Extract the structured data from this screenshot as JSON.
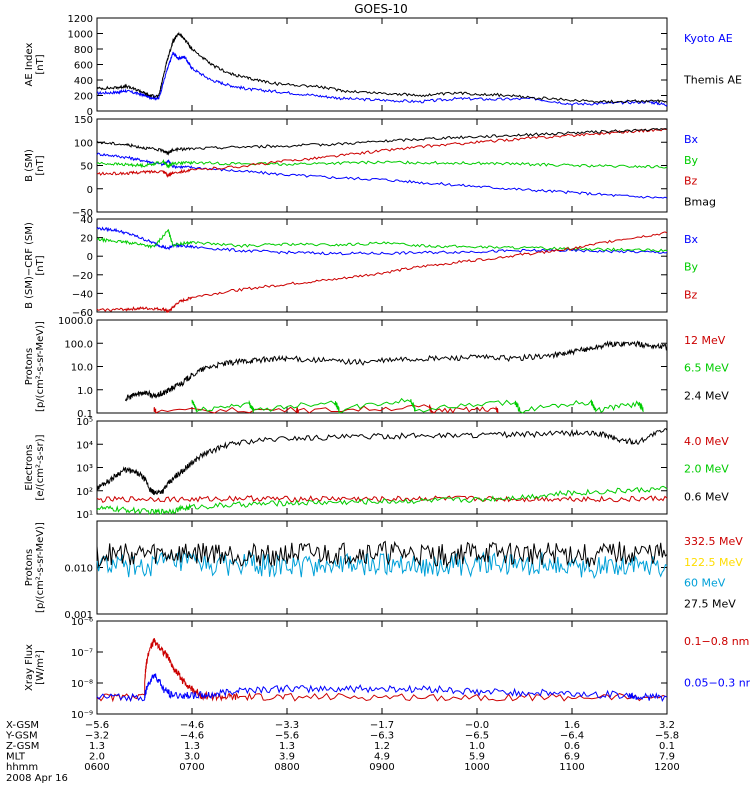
{
  "title": "GOES-10",
  "chart_data": [
    {
      "id": "ae",
      "type": "line",
      "ylabel": [
        "AE Index",
        "[nT]"
      ],
      "ylim": [
        0,
        1200
      ],
      "scale": "linear",
      "ticks": [
        {
          "v": 0,
          "label": "0"
        },
        {
          "v": 200,
          "label": "200"
        },
        {
          "v": 400,
          "label": "400"
        },
        {
          "v": 600,
          "label": "600"
        },
        {
          "v": 800,
          "label": "800"
        },
        {
          "v": 1000,
          "label": "1000"
        },
        {
          "v": 1200,
          "label": "1200"
        }
      ],
      "series": [
        {
          "name": "Kyoto AE",
          "color": "#0000ff",
          "x": [
            0,
            0.2,
            0.3,
            0.45,
            0.55,
            0.65,
            0.73,
            0.8,
            0.85,
            0.92,
            1.0,
            1.2,
            1.4,
            1.6,
            1.9,
            2.3,
            2.6,
            3.0,
            3.4,
            3.8,
            4.2,
            4.6,
            5.0,
            5.4,
            5.8,
            6.0
          ],
          "y": [
            230,
            240,
            260,
            220,
            180,
            160,
            500,
            750,
            680,
            700,
            550,
            400,
            330,
            280,
            250,
            200,
            160,
            140,
            120,
            160,
            150,
            160,
            90,
            100,
            120,
            80
          ]
        },
        {
          "name": "Themis AE",
          "color": "#000000",
          "x": [
            0,
            0.2,
            0.3,
            0.45,
            0.55,
            0.65,
            0.73,
            0.8,
            0.86,
            0.92,
            1.0,
            1.2,
            1.4,
            1.6,
            1.9,
            2.3,
            2.6,
            3.0,
            3.4,
            3.8,
            4.2,
            4.6,
            5.0,
            5.4,
            5.8,
            6.0
          ],
          "y": [
            290,
            300,
            320,
            260,
            200,
            190,
            620,
            900,
            1000,
            930,
            800,
            600,
            480,
            420,
            350,
            320,
            260,
            230,
            200,
            230,
            210,
            170,
            140,
            120,
            130,
            120
          ]
        }
      ],
      "legend_below": [
        "Themis AE"
      ]
    },
    {
      "id": "b_sm",
      "type": "line",
      "ylabel": [
        "B (SM)",
        "[nT]"
      ],
      "ylim": [
        -50,
        150
      ],
      "scale": "linear",
      "ticks": [
        {
          "v": -50,
          "label": "−50"
        },
        {
          "v": 0,
          "label": "0"
        },
        {
          "v": 50,
          "label": "50"
        },
        {
          "v": 100,
          "label": "100"
        },
        {
          "v": 150,
          "label": "150"
        }
      ],
      "series": [
        {
          "name": "Bx",
          "color": "#0000ff",
          "x": [
            0,
            0.3,
            0.5,
            0.7,
            0.75,
            0.8,
            1.0,
            1.5,
            2.0,
            2.5,
            3.0,
            3.5,
            4.0,
            4.5,
            5.0,
            5.5,
            6.0
          ],
          "y": [
            75,
            68,
            60,
            52,
            60,
            48,
            46,
            38,
            30,
            24,
            20,
            12,
            5,
            -2,
            -8,
            -15,
            -20
          ]
        },
        {
          "name": "By",
          "color": "#00cc00",
          "x": [
            0,
            0.3,
            0.5,
            0.7,
            0.75,
            0.8,
            1.0,
            1.5,
            2.0,
            2.5,
            3.0,
            3.5,
            4.0,
            4.5,
            5.0,
            5.5,
            6.0
          ],
          "y": [
            55,
            52,
            50,
            58,
            48,
            55,
            56,
            54,
            53,
            55,
            57,
            56,
            55,
            53,
            50,
            48,
            47
          ]
        },
        {
          "name": "Bz",
          "color": "#cc0000",
          "x": [
            0,
            0.3,
            0.5,
            0.7,
            0.75,
            0.8,
            1.0,
            1.5,
            2.0,
            2.5,
            3.0,
            3.5,
            4.0,
            4.5,
            5.0,
            5.5,
            6.0
          ],
          "y": [
            32,
            33,
            36,
            38,
            28,
            35,
            40,
            48,
            60,
            70,
            82,
            92,
            100,
            108,
            115,
            122,
            128
          ]
        },
        {
          "name": "Bmag",
          "color": "#000000",
          "x": [
            0,
            0.3,
            0.5,
            0.7,
            0.75,
            0.8,
            1.0,
            1.5,
            2.0,
            2.5,
            3.0,
            3.5,
            4.0,
            4.5,
            5.0,
            5.5,
            6.0
          ],
          "y": [
            100,
            95,
            88,
            82,
            76,
            84,
            86,
            90,
            92,
            96,
            102,
            108,
            112,
            116,
            120,
            124,
            128
          ]
        }
      ]
    },
    {
      "id": "b_minus_crf",
      "type": "line",
      "ylabel": [
        "B (SM)−CRF (SM)",
        "[nT]"
      ],
      "ylim": [
        -60,
        40
      ],
      "scale": "linear",
      "ticks": [
        {
          "v": -60,
          "label": "−60"
        },
        {
          "v": -40,
          "label": "−40"
        },
        {
          "v": -20,
          "label": "−20"
        },
        {
          "v": 0,
          "label": "0"
        },
        {
          "v": 20,
          "label": "20"
        },
        {
          "v": 40,
          "label": "40"
        }
      ],
      "series": [
        {
          "name": "Bx",
          "color": "#0000ff",
          "x": [
            0,
            0.2,
            0.4,
            0.6,
            0.75,
            0.8,
            1.0,
            1.5,
            2.0,
            2.5,
            3.0,
            3.5,
            4.0,
            4.5,
            5.0,
            5.5,
            6.0
          ],
          "y": [
            30,
            28,
            22,
            14,
            8,
            12,
            10,
            6,
            4,
            3,
            3,
            4,
            5,
            6,
            6,
            5,
            4
          ]
        },
        {
          "name": "By",
          "color": "#00cc00",
          "x": [
            0,
            0.2,
            0.4,
            0.6,
            0.75,
            0.8,
            1.0,
            1.5,
            2.0,
            2.5,
            3.0,
            3.5,
            4.0,
            4.5,
            5.0,
            5.5,
            6.0
          ],
          "y": [
            18,
            16,
            14,
            10,
            28,
            12,
            15,
            11,
            13,
            12,
            14,
            11,
            10,
            9,
            8,
            7,
            6
          ]
        },
        {
          "name": "Bz",
          "color": "#cc0000",
          "x": [
            0,
            0.3,
            0.5,
            0.7,
            0.75,
            0.85,
            1.0,
            1.5,
            2.0,
            2.5,
            3.0,
            3.5,
            4.0,
            4.5,
            5.0,
            5.5,
            6.0
          ],
          "y": [
            -58,
            -57,
            -56,
            -57,
            -60,
            -50,
            -44,
            -36,
            -30,
            -25,
            -18,
            -10,
            -4,
            2,
            8,
            18,
            25
          ]
        }
      ]
    },
    {
      "id": "protons_low",
      "type": "line",
      "ylabel": [
        "Protons",
        "[p/(cm²-s-sr-MeV)]"
      ],
      "ylim": [
        0.1,
        1000
      ],
      "scale": "log",
      "ticks": [
        {
          "v": 0.1,
          "label": "0.1"
        },
        {
          "v": 1,
          "label": "1.0"
        },
        {
          "v": 10,
          "label": "10.0"
        },
        {
          "v": 100,
          "label": "100.0"
        },
        {
          "v": 1000,
          "label": "1000.0"
        }
      ],
      "series": [
        {
          "name": "12 MeV",
          "color": "#cc0000",
          "x": [
            0.6,
            0.62,
            2.1,
            2.12,
            3.5,
            3.52,
            4.2,
            4.22
          ],
          "y": [
            0.15,
            0.12,
            0.14,
            0.12,
            0.18,
            0.12,
            0.15,
            0.12
          ]
        },
        {
          "name": "6.5 MeV",
          "color": "#00cc00",
          "x": [
            1.0,
            1.05,
            1.6,
            1.65,
            2.5,
            2.55,
            3.3,
            3.35,
            4.4,
            4.45,
            5.2,
            5.25,
            5.7,
            5.75
          ],
          "y": [
            0.3,
            0.12,
            0.25,
            0.12,
            0.3,
            0.12,
            0.35,
            0.12,
            0.28,
            0.12,
            0.3,
            0.12,
            0.25,
            0.12
          ]
        },
        {
          "name": "2.4 MeV",
          "color": "#000000",
          "x": [
            0.3,
            0.4,
            0.5,
            0.6,
            0.7,
            0.8,
            0.9,
            1.0,
            1.2,
            1.4,
            1.6,
            1.8,
            2.0,
            2.4,
            2.8,
            3.2,
            3.6,
            4.0,
            4.4,
            4.8,
            5.0,
            5.2,
            5.4,
            5.6,
            5.8,
            6.0
          ],
          "y": [
            0.4,
            0.6,
            0.8,
            0.5,
            0.7,
            1.2,
            2,
            4,
            10,
            14,
            18,
            20,
            22,
            18,
            15,
            20,
            22,
            25,
            22,
            30,
            40,
            60,
            90,
            100,
            80,
            70
          ]
        }
      ]
    },
    {
      "id": "electrons",
      "type": "line",
      "ylabel": [
        "Electrons",
        "[e/(cm²-s-sr)]"
      ],
      "ylim": [
        10,
        100000
      ],
      "scale": "log",
      "ticks": [
        {
          "v": 10,
          "label": "10¹"
        },
        {
          "v": 100,
          "label": "10²"
        },
        {
          "v": 1000,
          "label": "10³"
        },
        {
          "v": 10000,
          "label": "10⁴"
        },
        {
          "v": 100000,
          "label": "10⁵"
        }
      ],
      "series": [
        {
          "name": "4.0 MeV",
          "color": "#cc0000",
          "x": [
            0,
            0.5,
            1.0,
            1.5,
            2.0,
            2.5,
            3.0,
            3.5,
            4.0,
            4.5,
            5.0,
            5.5,
            6.0
          ],
          "y": [
            40,
            45,
            42,
            48,
            44,
            46,
            43,
            47,
            45,
            44,
            46,
            42,
            48
          ]
        },
        {
          "name": "2.0 MeV",
          "color": "#00cc00",
          "x": [
            0,
            0.3,
            0.6,
            0.8,
            1.0,
            1.5,
            2.0,
            2.5,
            3.0,
            3.5,
            4.0,
            4.5,
            5.0,
            5.5,
            6.0
          ],
          "y": [
            18,
            15,
            12,
            14,
            20,
            25,
            30,
            32,
            35,
            38,
            42,
            55,
            80,
            100,
            120
          ]
        },
        {
          "name": "0.6 MeV",
          "color": "#000000",
          "x": [
            0,
            0.15,
            0.3,
            0.45,
            0.55,
            0.6,
            0.7,
            0.8,
            0.9,
            1.0,
            1.2,
            1.5,
            2.0,
            2.5,
            3.0,
            3.5,
            4.0,
            4.5,
            5.0,
            5.3,
            5.5,
            5.7,
            6.0
          ],
          "y": [
            120,
            300,
            800,
            500,
            120,
            80,
            100,
            300,
            700,
            1500,
            5000,
            12000,
            18000,
            20000,
            22000,
            24000,
            25000,
            26000,
            30000,
            28000,
            15000,
            12000,
            40000
          ]
        }
      ]
    },
    {
      "id": "protons_high",
      "type": "line",
      "ylabel": [
        "Protons",
        "[p/(cm²-s-sr-MeV)]"
      ],
      "ylim": [
        0.001,
        0.1
      ],
      "scale": "log",
      "ticks": [
        {
          "v": 0.001,
          "label": "0.001"
        },
        {
          "v": 0.01,
          "label": "0.010"
        },
        {
          "v": 0.1,
          "label": ""
        }
      ],
      "series": [
        {
          "name": "332.5 MeV",
          "color": "#cc0000",
          "x": [],
          "y": []
        },
        {
          "name": "122.5 MeV",
          "color": "#ffdd00",
          "x": [],
          "y": []
        },
        {
          "name": "60 MeV",
          "color": "#00a0d8",
          "x": [
            0,
            0.4,
            0.8,
            1.2,
            1.6,
            2.0,
            2.4,
            2.8,
            3.2,
            3.6,
            4.0,
            4.4,
            4.8,
            5.2,
            5.6,
            6.0
          ],
          "y": [
            0.012,
            0.01,
            0.013,
            0.011,
            0.012,
            0.01,
            0.012,
            0.011,
            0.013,
            0.01,
            0.012,
            0.011,
            0.012,
            0.01,
            0.013,
            0.011
          ]
        },
        {
          "name": "27.5 MeV",
          "color": "#000000",
          "x": [
            0,
            0.4,
            0.8,
            1.2,
            1.6,
            2.0,
            2.4,
            2.8,
            3.2,
            3.6,
            4.0,
            4.4,
            4.8,
            5.2,
            5.6,
            6.0
          ],
          "y": [
            0.018,
            0.02,
            0.019,
            0.021,
            0.018,
            0.02,
            0.019,
            0.021,
            0.02,
            0.018,
            0.021,
            0.019,
            0.02,
            0.018,
            0.021,
            0.019
          ]
        }
      ],
      "noisy": true
    },
    {
      "id": "xray",
      "type": "line",
      "ylabel": [
        "Xray Flux",
        "[W/m²]"
      ],
      "ylim": [
        1e-09,
        1e-06
      ],
      "scale": "log",
      "ticks": [
        {
          "v": 1e-09,
          "label": "10⁻⁹"
        },
        {
          "v": 1e-08,
          "label": "10⁻⁸"
        },
        {
          "v": 1e-07,
          "label": "10⁻⁷"
        },
        {
          "v": 1e-06,
          "label": "10⁻⁶"
        }
      ],
      "series": [
        {
          "name": "0.1−0.8 nm",
          "color": "#cc0000",
          "x": [
            0,
            0.5,
            0.52,
            0.6,
            0.7,
            0.8,
            0.9,
            1.0,
            1.1,
            1.3,
            1.5,
            2.0,
            3.0,
            4.0,
            5.0,
            6.0
          ],
          "y": [
            3.5e-09,
            3.5e-09,
            4e-08,
            2.2e-07,
            1e-07,
            3e-08,
            1.2e-08,
            6e-09,
            4e-09,
            3.5e-09,
            3.5e-09,
            3.5e-09,
            3.5e-09,
            3.5e-09,
            3.5e-09,
            3.5e-09
          ]
        },
        {
          "name": "0.05−0.3 nm",
          "color": "#0000ff",
          "x": [
            0,
            0.5,
            0.52,
            0.6,
            0.7,
            0.8,
            1.0,
            1.2,
            1.5,
            2.0,
            2.5,
            3.0,
            3.5,
            4.0,
            4.5,
            5.0,
            5.6,
            5.7,
            6.0
          ],
          "y": [
            3.5e-09,
            3.5e-09,
            6e-09,
            1.8e-08,
            6e-09,
            4e-09,
            4e-09,
            4e-09,
            6e-09,
            6.5e-09,
            6.5e-09,
            6.5e-09,
            6.5e-09,
            5e-09,
            5e-09,
            4.5e-09,
            4e-09,
            3.5e-09,
            3.5e-09
          ]
        }
      ]
    }
  ],
  "axis_table": {
    "row_labels": [
      "X-GSM",
      "Y-GSM",
      "Z-GSM",
      "MLT",
      "hhmm"
    ],
    "columns": [
      [
        "−5.6",
        "−3.2",
        "1.3",
        "2.0",
        "0600"
      ],
      [
        "−4.6",
        "−4.6",
        "1.3",
        "3.0",
        "0700"
      ],
      [
        "−3.3",
        "−5.6",
        "1.3",
        "3.9",
        "0800"
      ],
      [
        "−1.7",
        "−6.3",
        "1.2",
        "4.9",
        "0900"
      ],
      [
        "−0.0",
        "−6.5",
        "1.0",
        "5.9",
        "1000"
      ],
      [
        "1.6",
        "−6.4",
        "0.6",
        "6.9",
        "1100"
      ],
      [
        "3.2",
        "−5.8",
        "0.1",
        "7.9",
        "1200"
      ]
    ],
    "date": "2008 Apr 16"
  }
}
